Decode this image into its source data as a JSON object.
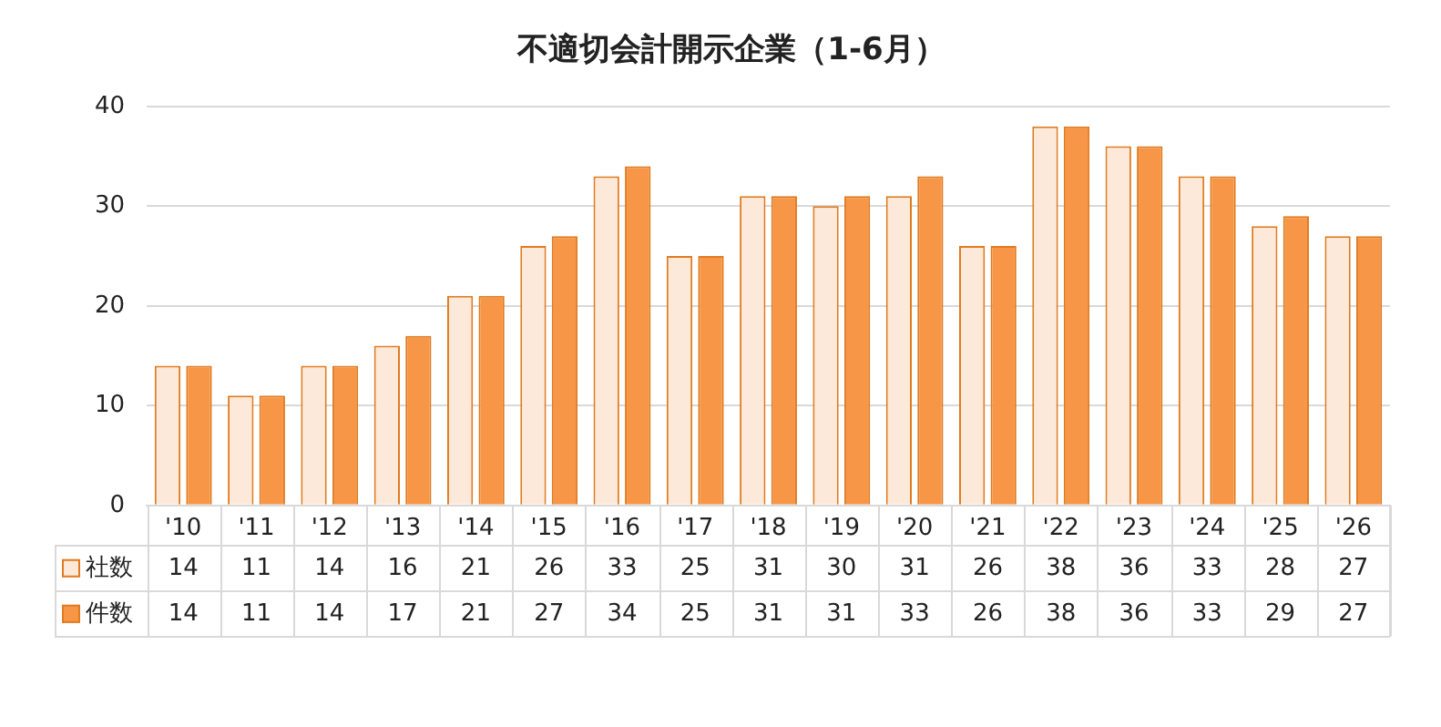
{
  "chart_data": {
    "type": "bar",
    "title": "不適切会計開示企業（1-6月）",
    "categories": [
      "'10",
      "'11",
      "'12",
      "'13",
      "'14",
      "'15",
      "'16",
      "'17",
      "'18",
      "'19",
      "'20",
      "'21",
      "'22",
      "'23",
      "'24",
      "'25",
      "'26"
    ],
    "series": [
      {
        "name": "社数",
        "color": "#fde9d9",
        "values": [
          14,
          11,
          14,
          16,
          21,
          26,
          33,
          25,
          31,
          30,
          31,
          26,
          38,
          36,
          33,
          28,
          27
        ]
      },
      {
        "name": "件数",
        "color": "#f79646",
        "values": [
          14,
          11,
          14,
          17,
          21,
          27,
          34,
          25,
          31,
          31,
          33,
          26,
          38,
          36,
          33,
          29,
          27
        ]
      }
    ],
    "ylim": [
      0,
      40
    ],
    "yticks": [
      0,
      10,
      20,
      30,
      40
    ],
    "grid": "y",
    "legend": "bottom",
    "data_labels": true
  }
}
